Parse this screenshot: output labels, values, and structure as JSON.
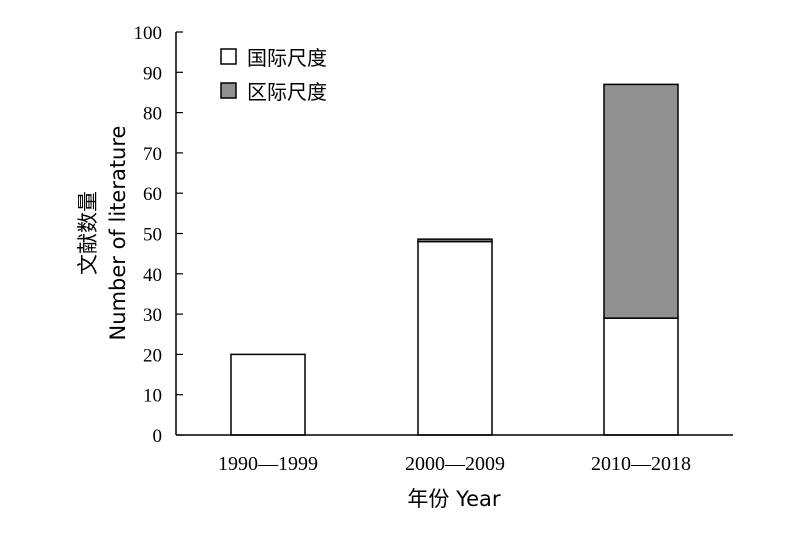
{
  "chart_data": {
    "type": "bar",
    "stacked": true,
    "categories": [
      "1990—1999",
      "2000—2009",
      "2010—2018"
    ],
    "series": [
      {
        "name": "国际尺度",
        "values": [
          20,
          48,
          29
        ],
        "color": "#ffffff"
      },
      {
        "name": "区际尺度",
        "values": [
          0,
          0.6,
          58
        ],
        "color": "#909090"
      }
    ],
    "ylabel_cn": "文献数量",
    "ylabel_en": "Number of literature",
    "xlabel": "年份 Year",
    "ylim": [
      0,
      100
    ],
    "yticks": [
      0,
      10,
      20,
      30,
      40,
      50,
      60,
      70,
      80,
      90,
      100
    ],
    "legend_position": "top-left",
    "grid": false
  }
}
